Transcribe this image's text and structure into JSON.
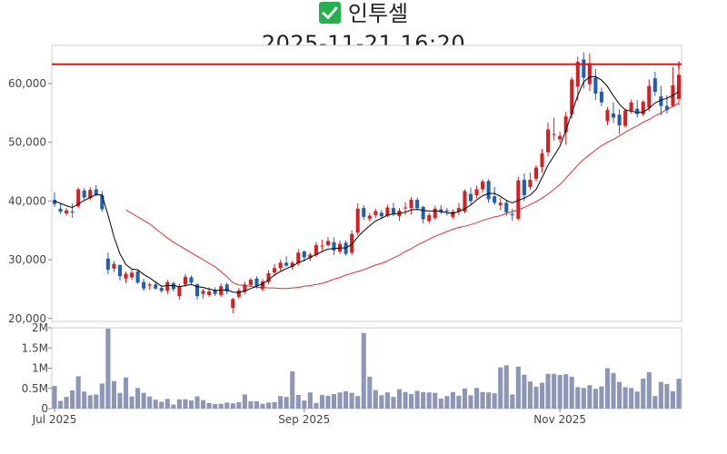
{
  "title": {
    "name": "인투셀",
    "icon": "check-mark-icon",
    "datetime": "2025-11-21 16:20"
  },
  "colors": {
    "up": "#d42020",
    "down": "#1f5fae",
    "ma_short": "#000000",
    "ma_long": "#e03030",
    "reference_line": "#ee1111",
    "volume": "#8d96b5",
    "icon_bg": "#22b14c"
  },
  "chart_data": [
    {
      "type": "candlestick",
      "title": "",
      "ylim": [
        19500,
        66500
      ],
      "y_ticks": [
        20000,
        30000,
        40000,
        50000,
        60000
      ],
      "y_tick_labels": [
        "20,000",
        "30,000",
        "40,000",
        "50,000",
        "60,000"
      ],
      "reference_line": 63300,
      "grid": false,
      "ohlc": [
        [
          40200,
          41500,
          39000,
          39500
        ],
        [
          38700,
          39500,
          37800,
          38200
        ],
        [
          37900,
          38800,
          37500,
          38400
        ],
        [
          38200,
          39600,
          37100,
          38100
        ],
        [
          39100,
          42300,
          38800,
          42000
        ],
        [
          41800,
          42200,
          40200,
          40600
        ],
        [
          40500,
          42400,
          40100,
          41900
        ],
        [
          42000,
          42700,
          40800,
          41100
        ],
        [
          41000,
          41700,
          38200,
          38600
        ],
        [
          30200,
          31200,
          27500,
          28300
        ],
        [
          28500,
          29800,
          27900,
          29300
        ],
        [
          29100,
          29200,
          26500,
          27200
        ],
        [
          26800,
          28000,
          26000,
          27600
        ],
        [
          27000,
          28300,
          26600,
          27800
        ],
        [
          28000,
          28300,
          25900,
          26100
        ],
        [
          26200,
          26800,
          24700,
          25100
        ],
        [
          25600,
          26100,
          24900,
          25800
        ],
        [
          25800,
          26300,
          24900,
          25100
        ],
        [
          25200,
          25600,
          24400,
          24700
        ],
        [
          24700,
          26600,
          24100,
          26200
        ],
        [
          26000,
          26300,
          24600,
          25000
        ],
        [
          23800,
          25900,
          23200,
          25500
        ],
        [
          25800,
          27600,
          25400,
          27100
        ],
        [
          27000,
          27300,
          25800,
          26100
        ],
        [
          25800,
          26000,
          23200,
          23800
        ],
        [
          24200,
          25100,
          23400,
          24700
        ],
        [
          24000,
          25300,
          23700,
          24600
        ],
        [
          24800,
          25300,
          23800,
          24200
        ],
        [
          24000,
          26000,
          23700,
          25500
        ],
        [
          25800,
          26100,
          24100,
          24600
        ],
        [
          21800,
          23500,
          20900,
          23300
        ],
        [
          23700,
          25200,
          23400,
          24800
        ],
        [
          24500,
          26300,
          24100,
          25800
        ],
        [
          25700,
          26900,
          25400,
          26600
        ],
        [
          26800,
          27200,
          25100,
          25500
        ],
        [
          25000,
          26700,
          24600,
          26300
        ],
        [
          26200,
          28200,
          25800,
          27700
        ],
        [
          27800,
          29300,
          27200,
          28600
        ],
        [
          28600,
          30000,
          28100,
          29500
        ],
        [
          29500,
          30600,
          28800,
          29000
        ],
        [
          28800,
          29800,
          28300,
          29500
        ],
        [
          29400,
          31800,
          29000,
          31200
        ],
        [
          31400,
          31600,
          29700,
          30400
        ],
        [
          30300,
          31200,
          29800,
          30900
        ],
        [
          30800,
          33000,
          30500,
          32500
        ],
        [
          32400,
          33400,
          31600,
          32400
        ],
        [
          32500,
          33900,
          32200,
          33200
        ],
        [
          33000,
          33800,
          30800,
          31600
        ],
        [
          31400,
          33300,
          31000,
          32700
        ],
        [
          32900,
          33300,
          30700,
          31000
        ],
        [
          31200,
          35000,
          30800,
          34400
        ],
        [
          34600,
          39600,
          34200,
          38700
        ],
        [
          38800,
          39300,
          36800,
          37300
        ],
        [
          37000,
          38000,
          36500,
          37500
        ],
        [
          37600,
          38700,
          37100,
          38300
        ],
        [
          38000,
          38500,
          36900,
          37400
        ],
        [
          37500,
          39400,
          37200,
          38900
        ],
        [
          38800,
          39700,
          37400,
          37800
        ],
        [
          37400,
          38800,
          36600,
          38400
        ],
        [
          38900,
          39800,
          37600,
          38900
        ],
        [
          38800,
          40700,
          37700,
          40200
        ],
        [
          40200,
          40600,
          38400,
          38800
        ],
        [
          39000,
          39200,
          36200,
          36900
        ],
        [
          36600,
          38000,
          36200,
          37600
        ],
        [
          37100,
          39200,
          36800,
          38700
        ],
        [
          38600,
          39300,
          37800,
          38100
        ],
        [
          38400,
          38800,
          37500,
          38200
        ],
        [
          37300,
          38600,
          36900,
          38200
        ],
        [
          38200,
          39700,
          37600,
          38800
        ],
        [
          38200,
          42000,
          37900,
          41700
        ],
        [
          41200,
          42300,
          39300,
          40000
        ],
        [
          41000,
          42600,
          40500,
          42000
        ],
        [
          42000,
          43700,
          41400,
          43300
        ],
        [
          43400,
          43700,
          39700,
          40300
        ],
        [
          40800,
          42400,
          39300,
          39700
        ],
        [
          39300,
          40500,
          38500,
          39700
        ],
        [
          39700,
          40200,
          37500,
          38100
        ],
        [
          37800,
          38700,
          36600,
          37600
        ],
        [
          37000,
          44100,
          36700,
          43500
        ],
        [
          43600,
          44700,
          40000,
          41000
        ],
        [
          42400,
          44800,
          41900,
          43600
        ],
        [
          43800,
          46100,
          43300,
          45700
        ],
        [
          45800,
          48900,
          44800,
          48100
        ],
        [
          48300,
          53400,
          47600,
          52200
        ],
        [
          51400,
          54200,
          50300,
          51400
        ],
        [
          50500,
          51800,
          49900,
          51100
        ],
        [
          51700,
          55200,
          49600,
          54400
        ],
        [
          54800,
          61100,
          54000,
          60700
        ],
        [
          59500,
          64600,
          57100,
          63700
        ],
        [
          64100,
          65300,
          59200,
          61000
        ],
        [
          59900,
          65100,
          58700,
          63500
        ],
        [
          61000,
          62500,
          57200,
          58300
        ],
        [
          58600,
          59300,
          56200,
          56800
        ],
        [
          53600,
          56000,
          52900,
          55500
        ],
        [
          54900,
          56800,
          53300,
          54200
        ],
        [
          54700,
          55600,
          51400,
          52900
        ],
        [
          52800,
          55700,
          52500,
          55400
        ],
        [
          55400,
          57300,
          54900,
          56800
        ],
        [
          55700,
          57200,
          54200,
          54800
        ],
        [
          54800,
          57200,
          54400,
          56900
        ],
        [
          55900,
          60700,
          55300,
          59600
        ],
        [
          60900,
          62000,
          57900,
          58600
        ],
        [
          57800,
          59600,
          54600,
          56200
        ],
        [
          56200,
          58000,
          54900,
          55500
        ],
        [
          56200,
          62800,
          56000,
          59700
        ],
        [
          57400,
          63500,
          56300,
          61500
        ]
      ],
      "ma_short": [
        40000,
        39600,
        39200,
        38900,
        39500,
        40100,
        40600,
        41100,
        41000,
        37600,
        33900,
        31000,
        29200,
        28400,
        28300,
        27500,
        26900,
        26200,
        25500,
        25600,
        25600,
        25400,
        25600,
        25800,
        25400,
        25300,
        25000,
        24800,
        24800,
        24900,
        24500,
        24400,
        24700,
        25100,
        25500,
        25900,
        26600,
        27400,
        28000,
        28500,
        28900,
        29500,
        29900,
        30400,
        30900,
        31400,
        31800,
        31900,
        32000,
        32000,
        32600,
        33900,
        34900,
        35800,
        36600,
        37100,
        37600,
        37800,
        37900,
        38100,
        38500,
        38600,
        38400,
        38300,
        38300,
        38200,
        38000,
        37900,
        38200,
        38700,
        39300,
        40200,
        40900,
        41300,
        41300,
        40800,
        40100,
        39700,
        40100,
        40500,
        41000,
        42000,
        44000,
        46100,
        47700,
        49300,
        52000,
        55000,
        58000,
        60300,
        61100,
        61200,
        60600,
        59500,
        57900,
        56500,
        55500,
        55300,
        55100,
        55100,
        55800,
        56700,
        57200,
        57500,
        58000,
        58600
      ],
      "ma_long": [
        null,
        null,
        null,
        null,
        null,
        null,
        null,
        null,
        null,
        null,
        null,
        null,
        38500,
        37900,
        37300,
        36700,
        36100,
        35300,
        34500,
        33700,
        33000,
        32400,
        31800,
        31200,
        30600,
        30000,
        29400,
        28800,
        28000,
        27100,
        26100,
        25700,
        25600,
        25500,
        25300,
        25300,
        25200,
        25200,
        25100,
        25100,
        25200,
        25300,
        25500,
        25600,
        25800,
        26000,
        26300,
        26700,
        27000,
        27400,
        27700,
        28000,
        28300,
        28700,
        29100,
        29400,
        29800,
        30300,
        30800,
        31400,
        31900,
        32500,
        33000,
        33500,
        34000,
        34400,
        34800,
        35200,
        35500,
        35700,
        36000,
        36300,
        36700,
        37000,
        37300,
        37500,
        37900,
        38200,
        38500,
        38900,
        39400,
        39900,
        40500,
        41200,
        42000,
        42800,
        43900,
        45000,
        46100,
        47100,
        47900,
        48700,
        49400,
        50000,
        50500,
        51100,
        51700,
        52300,
        52800,
        53400,
        53900,
        54500,
        55000,
        55600,
        56100,
        56700
      ],
      "candle_marker": true
    },
    {
      "type": "bar",
      "title": "",
      "ylim": [
        0,
        2000000
      ],
      "y_ticks": [
        0,
        500000,
        1000000,
        1500000,
        2000000
      ],
      "y_tick_labels": [
        "0",
        "0.5M",
        "1M",
        "1.5M",
        "2M"
      ],
      "x_tick_labels": [
        "Jul 2025",
        "Sep 2025",
        "Nov 2025"
      ],
      "x_tick_index": [
        0,
        42,
        85
      ],
      "values": [
        560000,
        190000,
        290000,
        450000,
        800000,
        420000,
        330000,
        350000,
        620000,
        1980000,
        680000,
        390000,
        770000,
        300000,
        510000,
        390000,
        300000,
        220000,
        170000,
        240000,
        100000,
        230000,
        230000,
        200000,
        300000,
        210000,
        140000,
        110000,
        120000,
        150000,
        130000,
        160000,
        350000,
        180000,
        180000,
        120000,
        150000,
        160000,
        310000,
        290000,
        920000,
        340000,
        200000,
        400000,
        140000,
        340000,
        320000,
        360000,
        400000,
        430000,
        390000,
        310000,
        1870000,
        790000,
        460000,
        330000,
        400000,
        290000,
        480000,
        410000,
        360000,
        440000,
        410000,
        400000,
        390000,
        250000,
        310000,
        410000,
        320000,
        500000,
        330000,
        510000,
        410000,
        400000,
        380000,
        1020000,
        1070000,
        350000,
        1040000,
        840000,
        670000,
        540000,
        640000,
        860000,
        860000,
        830000,
        850000,
        790000,
        530000,
        510000,
        580000,
        490000,
        550000,
        1000000,
        880000,
        660000,
        530000,
        510000,
        420000,
        740000,
        900000,
        310000,
        660000,
        610000,
        430000,
        740000
      ]
    }
  ]
}
